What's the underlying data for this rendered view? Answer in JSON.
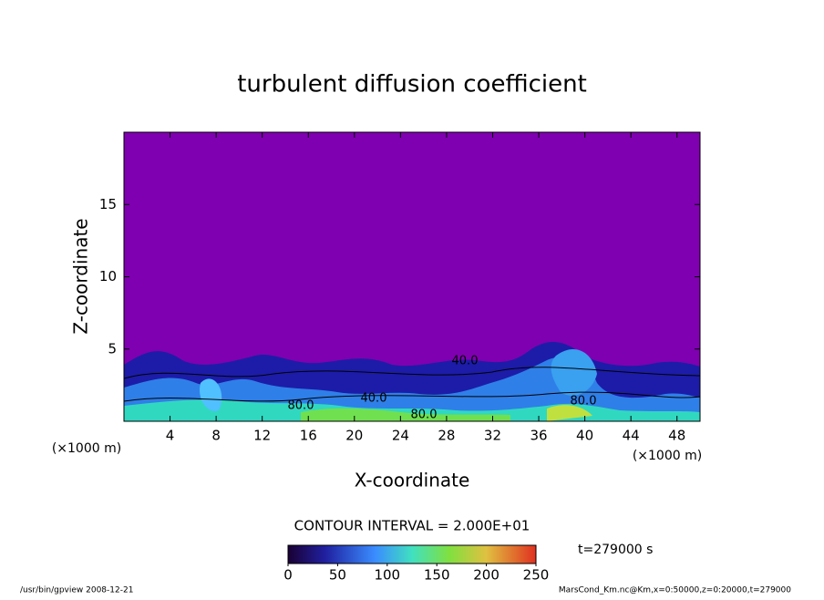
{
  "chart_data": {
    "type": "contour",
    "title": "turbulent diffusion coefficient",
    "xlabel": "X-coordinate",
    "ylabel": "Z-coordinate",
    "x_unit": "(×1000 m)",
    "xlim": [
      0,
      50
    ],
    "xticks": [
      4,
      8,
      12,
      16,
      20,
      24,
      28,
      32,
      36,
      40,
      44,
      48
    ],
    "ylim": [
      0,
      20
    ],
    "yticks": [
      5,
      10,
      15
    ],
    "contour_interval": "CONTOUR INTERVAL = 2.000E+01",
    "contour_labels": [
      "80.0",
      "40.0",
      "80.0",
      "40.0",
      "80.0"
    ],
    "clim": [
      0,
      250
    ],
    "cticks": [
      0,
      50,
      100,
      150,
      200,
      250
    ],
    "time_label": "t=279000 s",
    "footer_left": "/usr/bin/gpview   2008-12-21",
    "footer_right": "MarsCond_Km.nc@Km,x=0:50000,z=0:20000,t=279000"
  }
}
